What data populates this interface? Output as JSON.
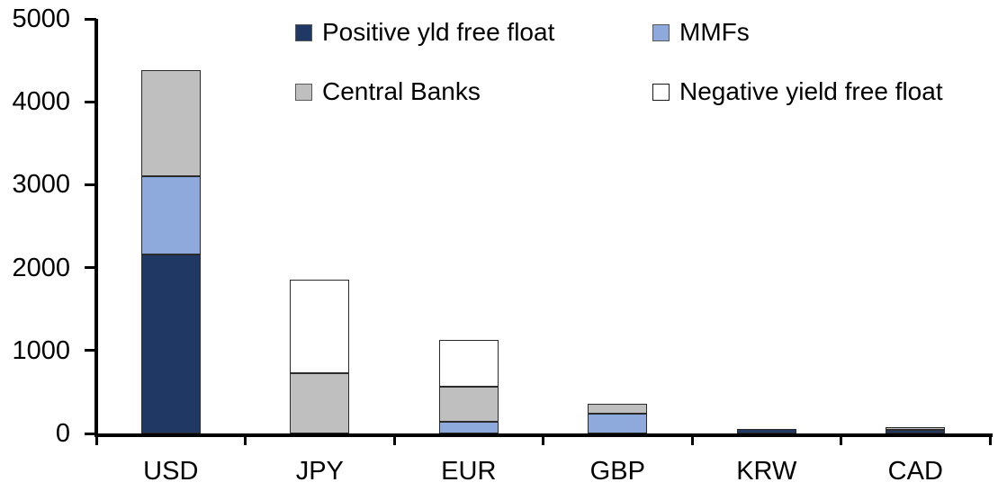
{
  "chart_data": {
    "type": "bar",
    "variant": "stacked",
    "title": "",
    "xlabel": "",
    "ylabel": "",
    "categories": [
      "USD",
      "JPY",
      "EUR",
      "GBP",
      "KRW",
      "CAD"
    ],
    "series": [
      {
        "name": "Positive yld free float",
        "color": "#1F3864",
        "values": [
          2160,
          0,
          0,
          0,
          60,
          40
        ]
      },
      {
        "name": "MMFs",
        "color": "#8EA9DB",
        "values": [
          940,
          0,
          140,
          240,
          0,
          0
        ]
      },
      {
        "name": "Central Banks",
        "color": "#BFBFBF",
        "values": [
          1280,
          725,
          420,
          115,
          0,
          35
        ]
      },
      {
        "name": "Negative yield free float",
        "color": "#FFFFFF",
        "values": [
          0,
          1135,
          570,
          0,
          0,
          0
        ]
      }
    ],
    "stack_totals": [
      4380,
      1860,
      1130,
      355,
      60,
      75
    ],
    "ylim": [
      0,
      5000
    ],
    "ytick_step": 1000,
    "ytick_labels": [
      "0",
      "1000",
      "2000",
      "3000",
      "4000",
      "5000"
    ],
    "grid": false,
    "legend_position": "top",
    "axis_color": "#000000"
  }
}
